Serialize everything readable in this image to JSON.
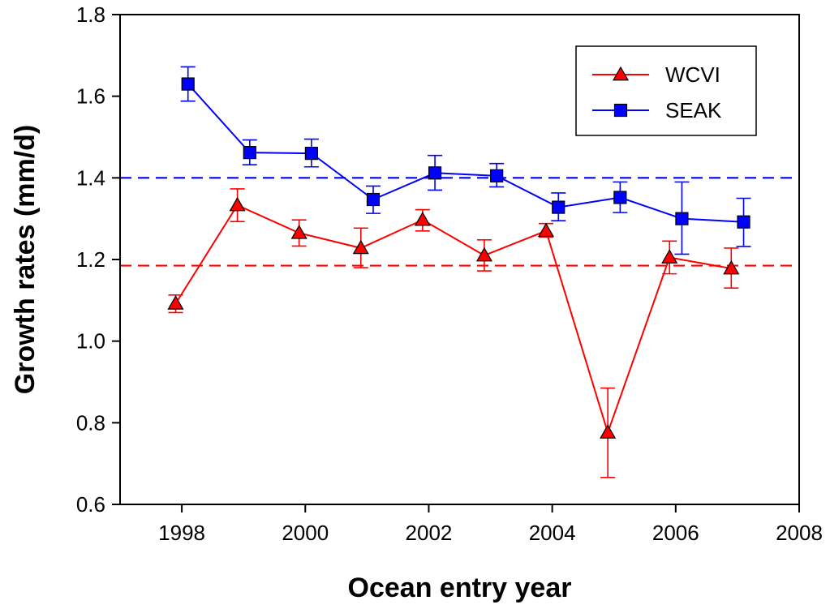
{
  "chart_data": {
    "type": "line",
    "xlabel": "Ocean entry year",
    "ylabel": "Growth rates (mm/d)",
    "xlim": [
      1997,
      2008
    ],
    "ylim": [
      0.6,
      1.8
    ],
    "x_ticks": [
      "1998",
      "2000",
      "2002",
      "2004",
      "2006",
      "2008"
    ],
    "y_ticks": [
      "0.6",
      "0.8",
      "1.0",
      "1.2",
      "1.4",
      "1.6",
      "1.8"
    ],
    "legend_position": "top-right",
    "series": [
      {
        "name": "WCVI",
        "color": "#ff0000",
        "marker": "triangle",
        "x": [
          1997.9,
          1998.9,
          1999.9,
          2000.9,
          2001.9,
          2002.9,
          2003.9,
          2004.9,
          2005.9,
          2006.9
        ],
        "y": [
          1.092,
          1.333,
          1.265,
          1.228,
          1.297,
          1.21,
          1.27,
          0.776,
          1.205,
          1.178
        ],
        "err_low": [
          1.07,
          1.293,
          1.233,
          1.18,
          1.27,
          1.172,
          1.255,
          0.666,
          1.165,
          1.13
        ],
        "err_high": [
          1.113,
          1.373,
          1.297,
          1.277,
          1.322,
          1.248,
          1.288,
          0.885,
          1.245,
          1.228
        ]
      },
      {
        "name": "SEAK",
        "color": "#0000ff",
        "marker": "square",
        "x": [
          1998.1,
          1999.1,
          2000.1,
          2001.1,
          2002.1,
          2003.1,
          2004.1,
          2005.1,
          2006.1,
          2007.1
        ],
        "y": [
          1.63,
          1.462,
          1.46,
          1.347,
          1.412,
          1.405,
          1.328,
          1.352,
          1.3,
          1.292
        ],
        "err_low": [
          1.588,
          1.432,
          1.427,
          1.313,
          1.37,
          1.378,
          1.295,
          1.315,
          1.213,
          1.232
        ],
        "err_high": [
          1.672,
          1.493,
          1.495,
          1.38,
          1.455,
          1.435,
          1.363,
          1.39,
          1.39,
          1.35
        ]
      }
    ],
    "reference_lines": [
      {
        "y": 1.4,
        "color": "#0000ff",
        "style": "dashed"
      },
      {
        "y": 1.185,
        "color": "#ff0000",
        "style": "dashed"
      }
    ]
  }
}
